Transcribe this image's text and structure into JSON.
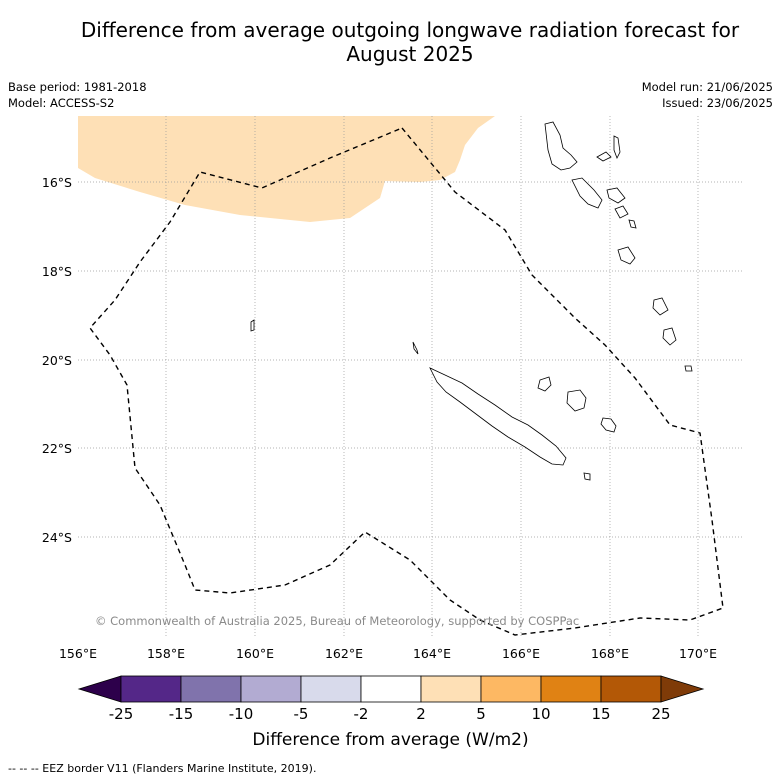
{
  "title_line1": "Difference from average outgoing longwave radiation forecast for",
  "title_line2": "August 2025",
  "base_period": "Base period: 1981-2018",
  "model": "Model: ACCESS-S2",
  "model_run": "Model run: 21/06/2025",
  "issued": "Issued: 23/06/2025",
  "copyright": "© Commonwealth of Australia 2025, Bureau of Meteorology, supported by COSPPac",
  "footnote": "-- -- -- EEZ border V11 (Flanders Marine Institute, 2019).",
  "latitude_labels": [
    "16°S",
    "18°S",
    "20°S",
    "22°S",
    "24°S"
  ],
  "longitude_labels": [
    "156°E",
    "158°E",
    "160°E",
    "162°E",
    "164°E",
    "166°E",
    "168°E",
    "170°E"
  ],
  "colorbar": {
    "label": "Difference from average (W/m2)",
    "ticks": [
      "-25",
      "-15",
      "-10",
      "-5",
      "-2",
      "2",
      "5",
      "10",
      "15",
      "25"
    ],
    "colors": [
      "#2d004b",
      "#542788",
      "#8073ac",
      "#b2abd2",
      "#d8daeb",
      "#ffffff",
      "#fee0b6",
      "#fdb863",
      "#e08214",
      "#b35806",
      "#7f3b08"
    ]
  },
  "anomaly_region_color": "#fee0b6"
}
